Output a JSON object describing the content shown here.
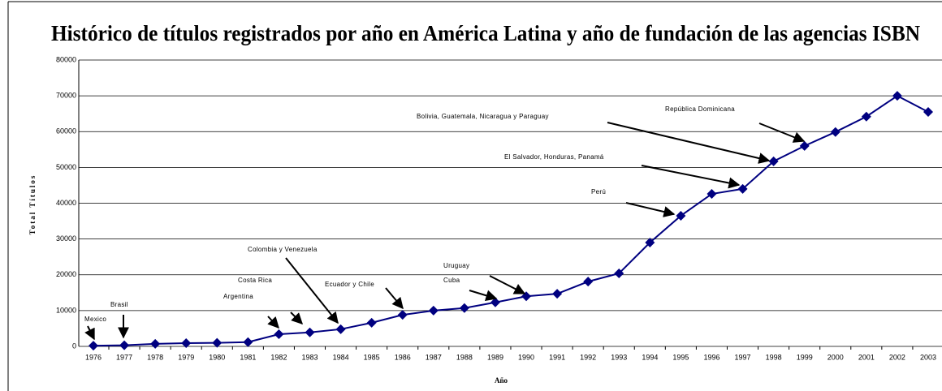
{
  "chart_data": {
    "type": "line",
    "title": "Histórico de títulos registrados por año en América Latina y año de fundación de las agencias ISBN",
    "x_label": "Año",
    "y_label": "Total Títulos",
    "categories": [
      "1976",
      "1977",
      "1978",
      "1979",
      "1980",
      "1981",
      "1982",
      "1983",
      "1984",
      "1985",
      "1986",
      "1987",
      "1988",
      "1989",
      "1990",
      "1991",
      "1992",
      "1993",
      "1994",
      "1995",
      "1996",
      "1997",
      "1998",
      "1999",
      "2000",
      "2001",
      "2002",
      "2003"
    ],
    "series": [
      {
        "name": "Total Títulos",
        "color": "#000080",
        "values": [
          200,
          300,
          700,
          900,
          1000,
          1200,
          3400,
          3900,
          4800,
          6600,
          8800,
          10000,
          10700,
          12300,
          14000,
          14700,
          18100,
          20400,
          29000,
          36500,
          42600,
          44000,
          51700,
          56000,
          59900,
          64200,
          70000,
          65500
        ]
      }
    ],
    "ylim": [
      0,
      80000
    ],
    "yticks": [
      0,
      10000,
      20000,
      30000,
      40000,
      50000,
      60000,
      70000,
      80000
    ],
    "grid": true,
    "annotations": [
      "Mexico",
      "Brasil",
      "Argentina",
      "Costa Rica",
      "Colombia y Venezuela",
      "Ecuador y Chile",
      "Cuba",
      "Uruguay",
      "Perú",
      "El Salvador, Honduras, Panamá",
      "Bolivia, Guatemala, Nicaragua y Paraguay",
      "República Dominicana"
    ]
  }
}
